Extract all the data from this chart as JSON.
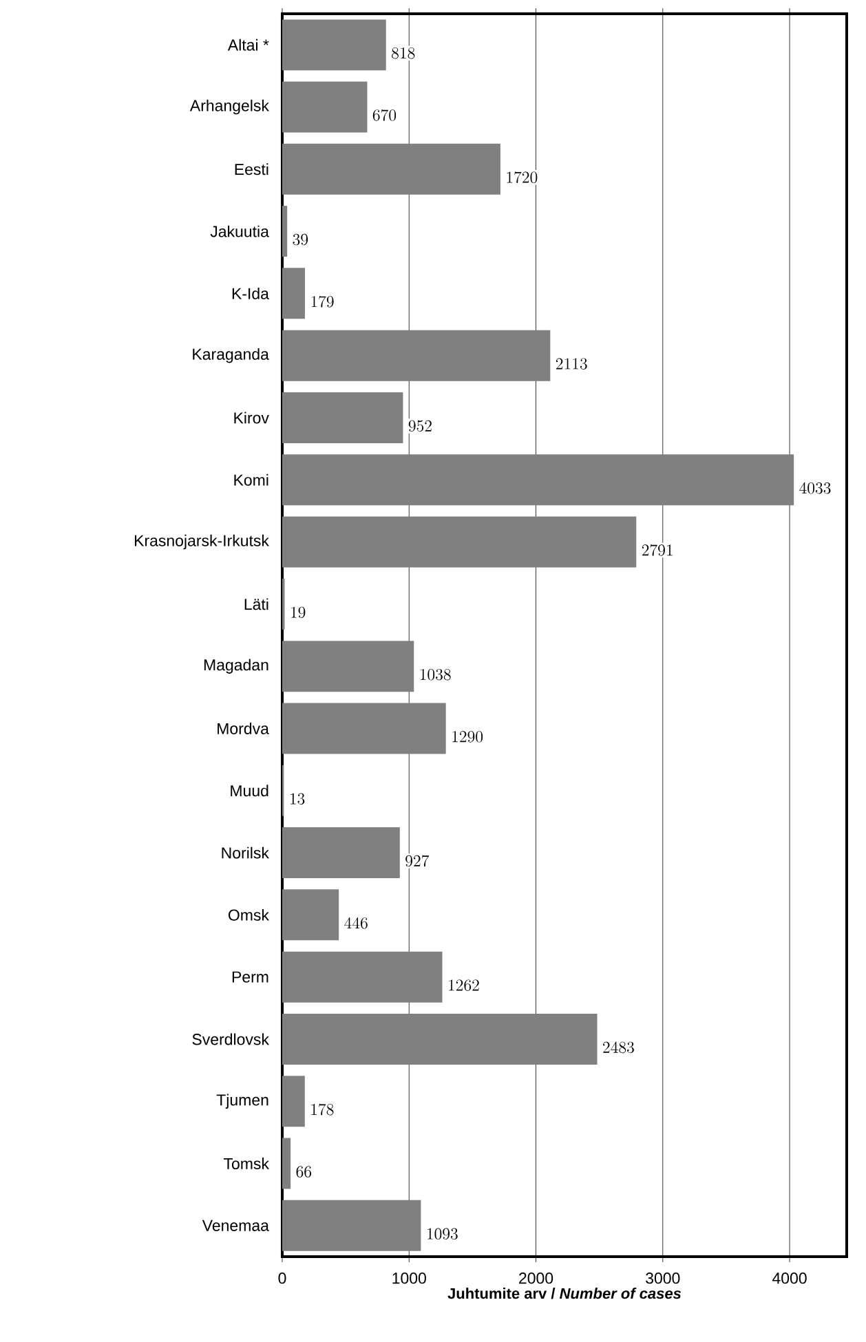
{
  "chart_data": {
    "type": "bar",
    "orientation": "horizontal",
    "categories": [
      "Altai *",
      "Arhangelsk",
      "Eesti",
      "Jakuutia",
      "K-Ida",
      "Karaganda",
      "Kirov",
      "Komi",
      "Krasnojarsk-Irkutsk",
      "Läti",
      "Magadan",
      "Mordva",
      "Muud",
      "Norilsk",
      "Omsk",
      "Perm",
      "Sverdlovsk",
      "Tjumen",
      "Tomsk",
      "Venemaa"
    ],
    "values": [
      818,
      670,
      1720,
      39,
      179,
      2113,
      952,
      4033,
      2791,
      19,
      1038,
      1290,
      13,
      927,
      446,
      1262,
      2483,
      178,
      66,
      1093
    ],
    "color": "#808080",
    "xlabel": "Juhtumite arv / *Number of cases*",
    "xlim": [
      0,
      4450
    ],
    "xticks": [
      0,
      1000,
      2000,
      3000,
      4000
    ],
    "grid": "x",
    "data_labels": true
  }
}
